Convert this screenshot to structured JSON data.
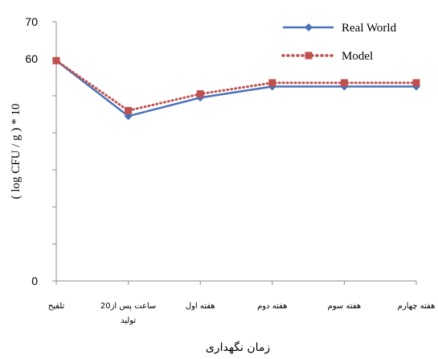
{
  "chart_data": {
    "type": "line",
    "xlabel": "زمان نگهداری",
    "ylabel": "( log   CFU / g  ) * 10",
    "ylim": [
      0,
      70
    ],
    "y_ticks": [
      {
        "value": 70,
        "label": "70"
      },
      {
        "value": 60,
        "label": "60"
      },
      {
        "value": 0,
        "label": "0"
      }
    ],
    "categories": [
      [
        "تلقیح"
      ],
      [
        "20ساعت پس از",
        "تولید"
      ],
      [
        "هفته اول"
      ],
      [
        "هفته دوم"
      ],
      [
        "هفته سوم"
      ],
      [
        "هفته چهارم"
      ]
    ],
    "series": [
      {
        "name": "Real World",
        "color": "#4a72b8",
        "marker": "diamond",
        "line": "solid",
        "values": [
          59.5,
          44.5,
          49.5,
          52.5,
          52.5,
          52.5
        ]
      },
      {
        "name": "Model",
        "color": "#c0504d",
        "marker": "square",
        "line": "dotted",
        "values": [
          59.5,
          46.0,
          50.5,
          53.5,
          53.5,
          53.5
        ]
      }
    ],
    "legend_position": "top-right",
    "grid": false
  }
}
